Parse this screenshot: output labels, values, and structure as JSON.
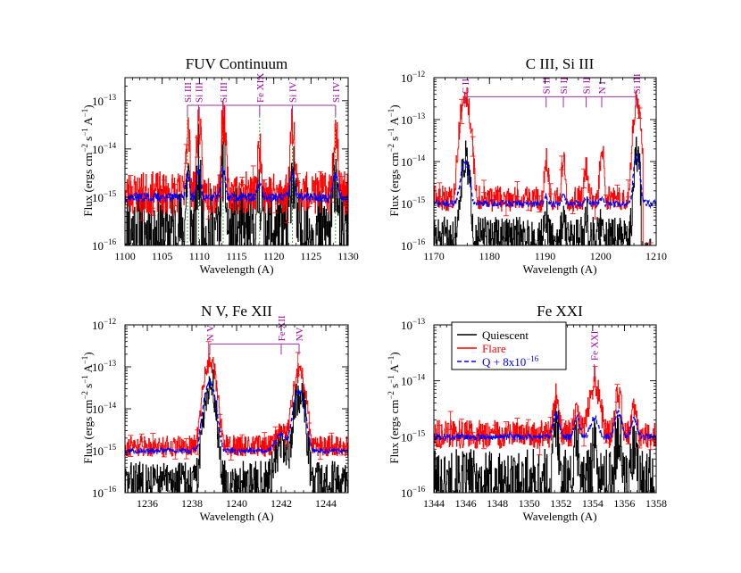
{
  "colors": {
    "quiescent": "#000000",
    "flare": "#ff0000",
    "model": "#0000ff",
    "ion_label": "#990099",
    "ion_line": "#993399",
    "guide": "#009900"
  },
  "legend": {
    "entries": [
      {
        "name": "Quiescent",
        "color": "#000000",
        "style": "solid"
      },
      {
        "name": "Flare",
        "color": "#ff0000",
        "style": "solid"
      },
      {
        "name": "Q + 8x10",
        "sup": "−16",
        "color": "#0000ff",
        "style": "dashed"
      }
    ]
  },
  "chart_data": [
    {
      "type": "line",
      "title": "FUV Continuum",
      "xlabel": "Wavelength (A)",
      "ylabel": "Flux (ergs cm^-2 s^-1 A^-1)",
      "xlim": [
        1100,
        1130
      ],
      "ylim": [
        1e-16,
        3e-13
      ],
      "yscale": "log",
      "xticks": [
        1100,
        1105,
        1110,
        1115,
        1120,
        1125,
        1130
      ],
      "yticks": [
        {
          "value": 1e-16,
          "label": "10",
          "sup": "−16"
        },
        {
          "value": 1e-15,
          "label": "10",
          "sup": "−15"
        },
        {
          "value": 1e-14,
          "label": "10",
          "sup": "−14"
        },
        {
          "value": 1e-13,
          "label": "10",
          "sup": "−13"
        }
      ],
      "bracket_flux": 8e-14,
      "ion_labels": [
        {
          "x": 1108.4,
          "text": "Si III",
          "guide": true
        },
        {
          "x": 1109.9,
          "text": "Si III",
          "guide": true
        },
        {
          "x": 1113.2,
          "text": "Si III",
          "guide": true
        },
        {
          "x": 1118.1,
          "text": "Fe XIX",
          "guide": true
        },
        {
          "x": 1122.5,
          "text": "Si IV",
          "guide": true
        },
        {
          "x": 1128.3,
          "text": "Si IV",
          "guide": true
        }
      ],
      "series": [
        {
          "name": "Quiescent",
          "quiet": 2e-16,
          "noise": 0.9,
          "seed": 11,
          "peaks": [
            [
              1108.4,
              3e-15,
              0.15
            ],
            [
              1109.9,
              4e-15,
              0.15
            ],
            [
              1113.2,
              6e-15,
              0.18
            ],
            [
              1118.1,
              1.2e-15,
              0.2
            ],
            [
              1122.5,
              4e-15,
              0.2
            ],
            [
              1128.3,
              4e-15,
              0.2
            ]
          ]
        },
        {
          "name": "Flare",
          "quiet": 1.2e-15,
          "noise": 0.45,
          "seed": 23,
          "peaks": [
            [
              1108.4,
              2.5e-14,
              0.18
            ],
            [
              1109.9,
              4e-14,
              0.18
            ],
            [
              1113.2,
              4e-14,
              0.2
            ],
            [
              1118.1,
              8e-15,
              0.22
            ],
            [
              1122.5,
              3e-14,
              0.22
            ],
            [
              1128.3,
              2.5e-14,
              0.22
            ]
          ]
        },
        {
          "name": "Q + 8x10^-16",
          "quiet": 1e-15,
          "noise": 0.1,
          "seed": 37,
          "smooth": true,
          "peaks": [
            [
              1108.4,
              2e-15,
              0.2
            ],
            [
              1109.9,
              3e-15,
              0.2
            ],
            [
              1113.2,
              3e-15,
              0.22
            ],
            [
              1118.1,
              1e-15,
              0.25
            ],
            [
              1122.5,
              2e-15,
              0.25
            ],
            [
              1128.3,
              2e-15,
              0.25
            ]
          ]
        }
      ]
    },
    {
      "type": "line",
      "title": "C III, Si III",
      "xlabel": "Wavelength (A)",
      "ylabel": "Flux (ergs cm^-2 s^-1 A^-1)",
      "xlim": [
        1170,
        1210
      ],
      "ylim": [
        1e-16,
        1e-12
      ],
      "yscale": "log",
      "xticks": [
        1170,
        1180,
        1190,
        1200,
        1210
      ],
      "yticks": [
        {
          "value": 1e-16,
          "label": "10",
          "sup": "−16"
        },
        {
          "value": 1e-15,
          "label": "10",
          "sup": "−15"
        },
        {
          "value": 1e-14,
          "label": "10",
          "sup": "−14"
        },
        {
          "value": 1e-13,
          "label": "10",
          "sup": "−13"
        },
        {
          "value": 1e-12,
          "label": "10",
          "sup": "−12"
        }
      ],
      "bracket_flux": 3.5e-13,
      "ion_labels": [
        {
          "x": 1175.6,
          "text": "C II",
          "guide": false
        },
        {
          "x": 1190.2,
          "text": "Si II",
          "guide": false
        },
        {
          "x": 1193.3,
          "text": "Si II",
          "guide": false
        },
        {
          "x": 1197.4,
          "text": "Si II",
          "guide": false
        },
        {
          "x": 1200.2,
          "text": "N I",
          "guide": false
        },
        {
          "x": 1206.5,
          "text": "Si III",
          "guide": false
        }
      ],
      "series": [
        {
          "name": "Quiescent",
          "quiet": 1.5e-16,
          "noise": 0.5,
          "seed": 51,
          "clip_end": 1207.3,
          "peaks": [
            [
              1175.6,
              1e-14,
              0.5
            ],
            [
              1190.2,
              4e-16,
              0.2
            ],
            [
              1193.3,
              5e-16,
              0.2
            ],
            [
              1197.4,
              4e-16,
              0.2
            ],
            [
              1200.2,
              3e-16,
              0.2
            ],
            [
              1206.5,
              1.5e-14,
              0.35
            ]
          ]
        },
        {
          "name": "Flare",
          "quiet": 1.3e-15,
          "noise": 0.3,
          "seed": 63,
          "clip_end": 1207.6,
          "peaks": [
            [
              1175.6,
              4e-13,
              0.55
            ],
            [
              1190.2,
              1e-14,
              0.25
            ],
            [
              1193.3,
              9e-15,
              0.25
            ],
            [
              1197.4,
              6e-15,
              0.25
            ],
            [
              1200.2,
              2e-14,
              0.25
            ],
            [
              1206.5,
              3e-13,
              0.4
            ]
          ]
        },
        {
          "name": "Q + 8x10^-16",
          "quiet": 1e-15,
          "noise": 0.08,
          "seed": 71,
          "smooth": true,
          "peaks": [
            [
              1175.6,
              9e-15,
              0.55
            ],
            [
              1190.2,
              5e-16,
              0.25
            ],
            [
              1193.3,
              6e-16,
              0.25
            ],
            [
              1197.4,
              4e-16,
              0.25
            ],
            [
              1200.2,
              3e-16,
              0.25
            ],
            [
              1206.5,
              1.2e-14,
              0.4
            ]
          ]
        }
      ]
    },
    {
      "type": "line",
      "title": "N V, Fe XII",
      "xlabel": "Wavelength (A)",
      "ylabel": "Flux (ergs cm^-2 s^-1 A^-1)",
      "xlim": [
        1235,
        1245
      ],
      "ylim": [
        1e-16,
        1e-12
      ],
      "yscale": "log",
      "xticks": [
        1236,
        1238,
        1240,
        1242,
        1244
      ],
      "yticks": [
        {
          "value": 1e-16,
          "label": "10",
          "sup": "−16"
        },
        {
          "value": 1e-15,
          "label": "10",
          "sup": "−15"
        },
        {
          "value": 1e-14,
          "label": "10",
          "sup": "−14"
        },
        {
          "value": 1e-13,
          "label": "10",
          "sup": "−13"
        },
        {
          "value": 1e-12,
          "label": "10",
          "sup": "−12"
        }
      ],
      "bracket_flux": 3.5e-13,
      "ion_labels": [
        {
          "x": 1238.8,
          "text": "N V",
          "guide": false
        },
        {
          "x": 1242.0,
          "text": "Fe XII",
          "guide": false
        },
        {
          "x": 1242.8,
          "text": "NV",
          "guide": false
        }
      ],
      "series": [
        {
          "name": "Quiescent",
          "quiet": 1.8e-16,
          "noise": 0.5,
          "seed": 83,
          "peaks": [
            [
              1238.8,
              4e-14,
              0.16
            ],
            [
              1242.0,
              1.2e-15,
              0.2
            ],
            [
              1242.8,
              2.5e-14,
              0.16
            ]
          ]
        },
        {
          "name": "Flare",
          "quiet": 1.3e-15,
          "noise": 0.25,
          "seed": 91,
          "peaks": [
            [
              1238.8,
              1.4e-13,
              0.18
            ],
            [
              1242.0,
              1.5e-15,
              0.2
            ],
            [
              1242.8,
              7e-14,
              0.18
            ]
          ]
        },
        {
          "name": "Q + 8x10^-16",
          "quiet": 1e-15,
          "noise": 0.06,
          "seed": 97,
          "smooth": true,
          "peaks": [
            [
              1238.8,
              4e-14,
              0.18
            ],
            [
              1242.0,
              1.5e-15,
              0.2
            ],
            [
              1242.8,
              2.5e-14,
              0.18
            ]
          ]
        }
      ]
    },
    {
      "type": "line",
      "title": "Fe XXI",
      "xlabel": "Wavelength (A)",
      "ylabel": "Flux (ergs cm^-2 s^-1 A^-1)",
      "xlim": [
        1344,
        1358
      ],
      "ylim": [
        1e-16,
        1e-13
      ],
      "yscale": "log",
      "xticks": [
        1344,
        1346,
        1348,
        1350,
        1352,
        1354,
        1356,
        1358
      ],
      "yticks": [
        {
          "value": 1e-16,
          "label": "10",
          "sup": "−16"
        },
        {
          "value": 1e-15,
          "label": "10",
          "sup": "−15"
        },
        {
          "value": 1e-14,
          "label": "10",
          "sup": "−14"
        },
        {
          "value": 1e-13,
          "label": "10",
          "sup": "−13"
        }
      ],
      "bracket_flux": null,
      "ion_labels": [
        {
          "x": 1354.1,
          "text": "Fe XXI",
          "guide": false,
          "tick": true
        }
      ],
      "series": [
        {
          "name": "Quiescent",
          "quiet": 1.5e-16,
          "noise": 0.6,
          "seed": 101,
          "peaks": [
            [
              1351.7,
              1.5e-15,
              0.12
            ],
            [
              1353.0,
              6e-16,
              0.12
            ],
            [
              1354.1,
              5e-16,
              0.15
            ],
            [
              1355.6,
              1e-15,
              0.14
            ],
            [
              1356.6,
              4e-16,
              0.12
            ]
          ]
        },
        {
          "name": "Flare",
          "quiet": 1.1e-15,
          "noise": 0.25,
          "seed": 113,
          "peaks": [
            [
              1351.7,
              4e-15,
              0.13
            ],
            [
              1353.0,
              2e-15,
              0.13
            ],
            [
              1354.1,
              8e-15,
              0.25
            ],
            [
              1355.6,
              5e-15,
              0.15
            ],
            [
              1356.6,
              2e-15,
              0.13
            ]
          ]
        },
        {
          "name": "Q + 8x10^-16",
          "quiet": 1e-15,
          "noise": 0.06,
          "seed": 127,
          "smooth": true,
          "peaks": [
            [
              1351.7,
              1.6e-15,
              0.15
            ],
            [
              1353.0,
              1.2e-15,
              0.15
            ],
            [
              1354.1,
              1.2e-15,
              0.2
            ],
            [
              1355.6,
              1.7e-15,
              0.18
            ],
            [
              1356.6,
              1.1e-15,
              0.15
            ]
          ]
        }
      ]
    }
  ]
}
